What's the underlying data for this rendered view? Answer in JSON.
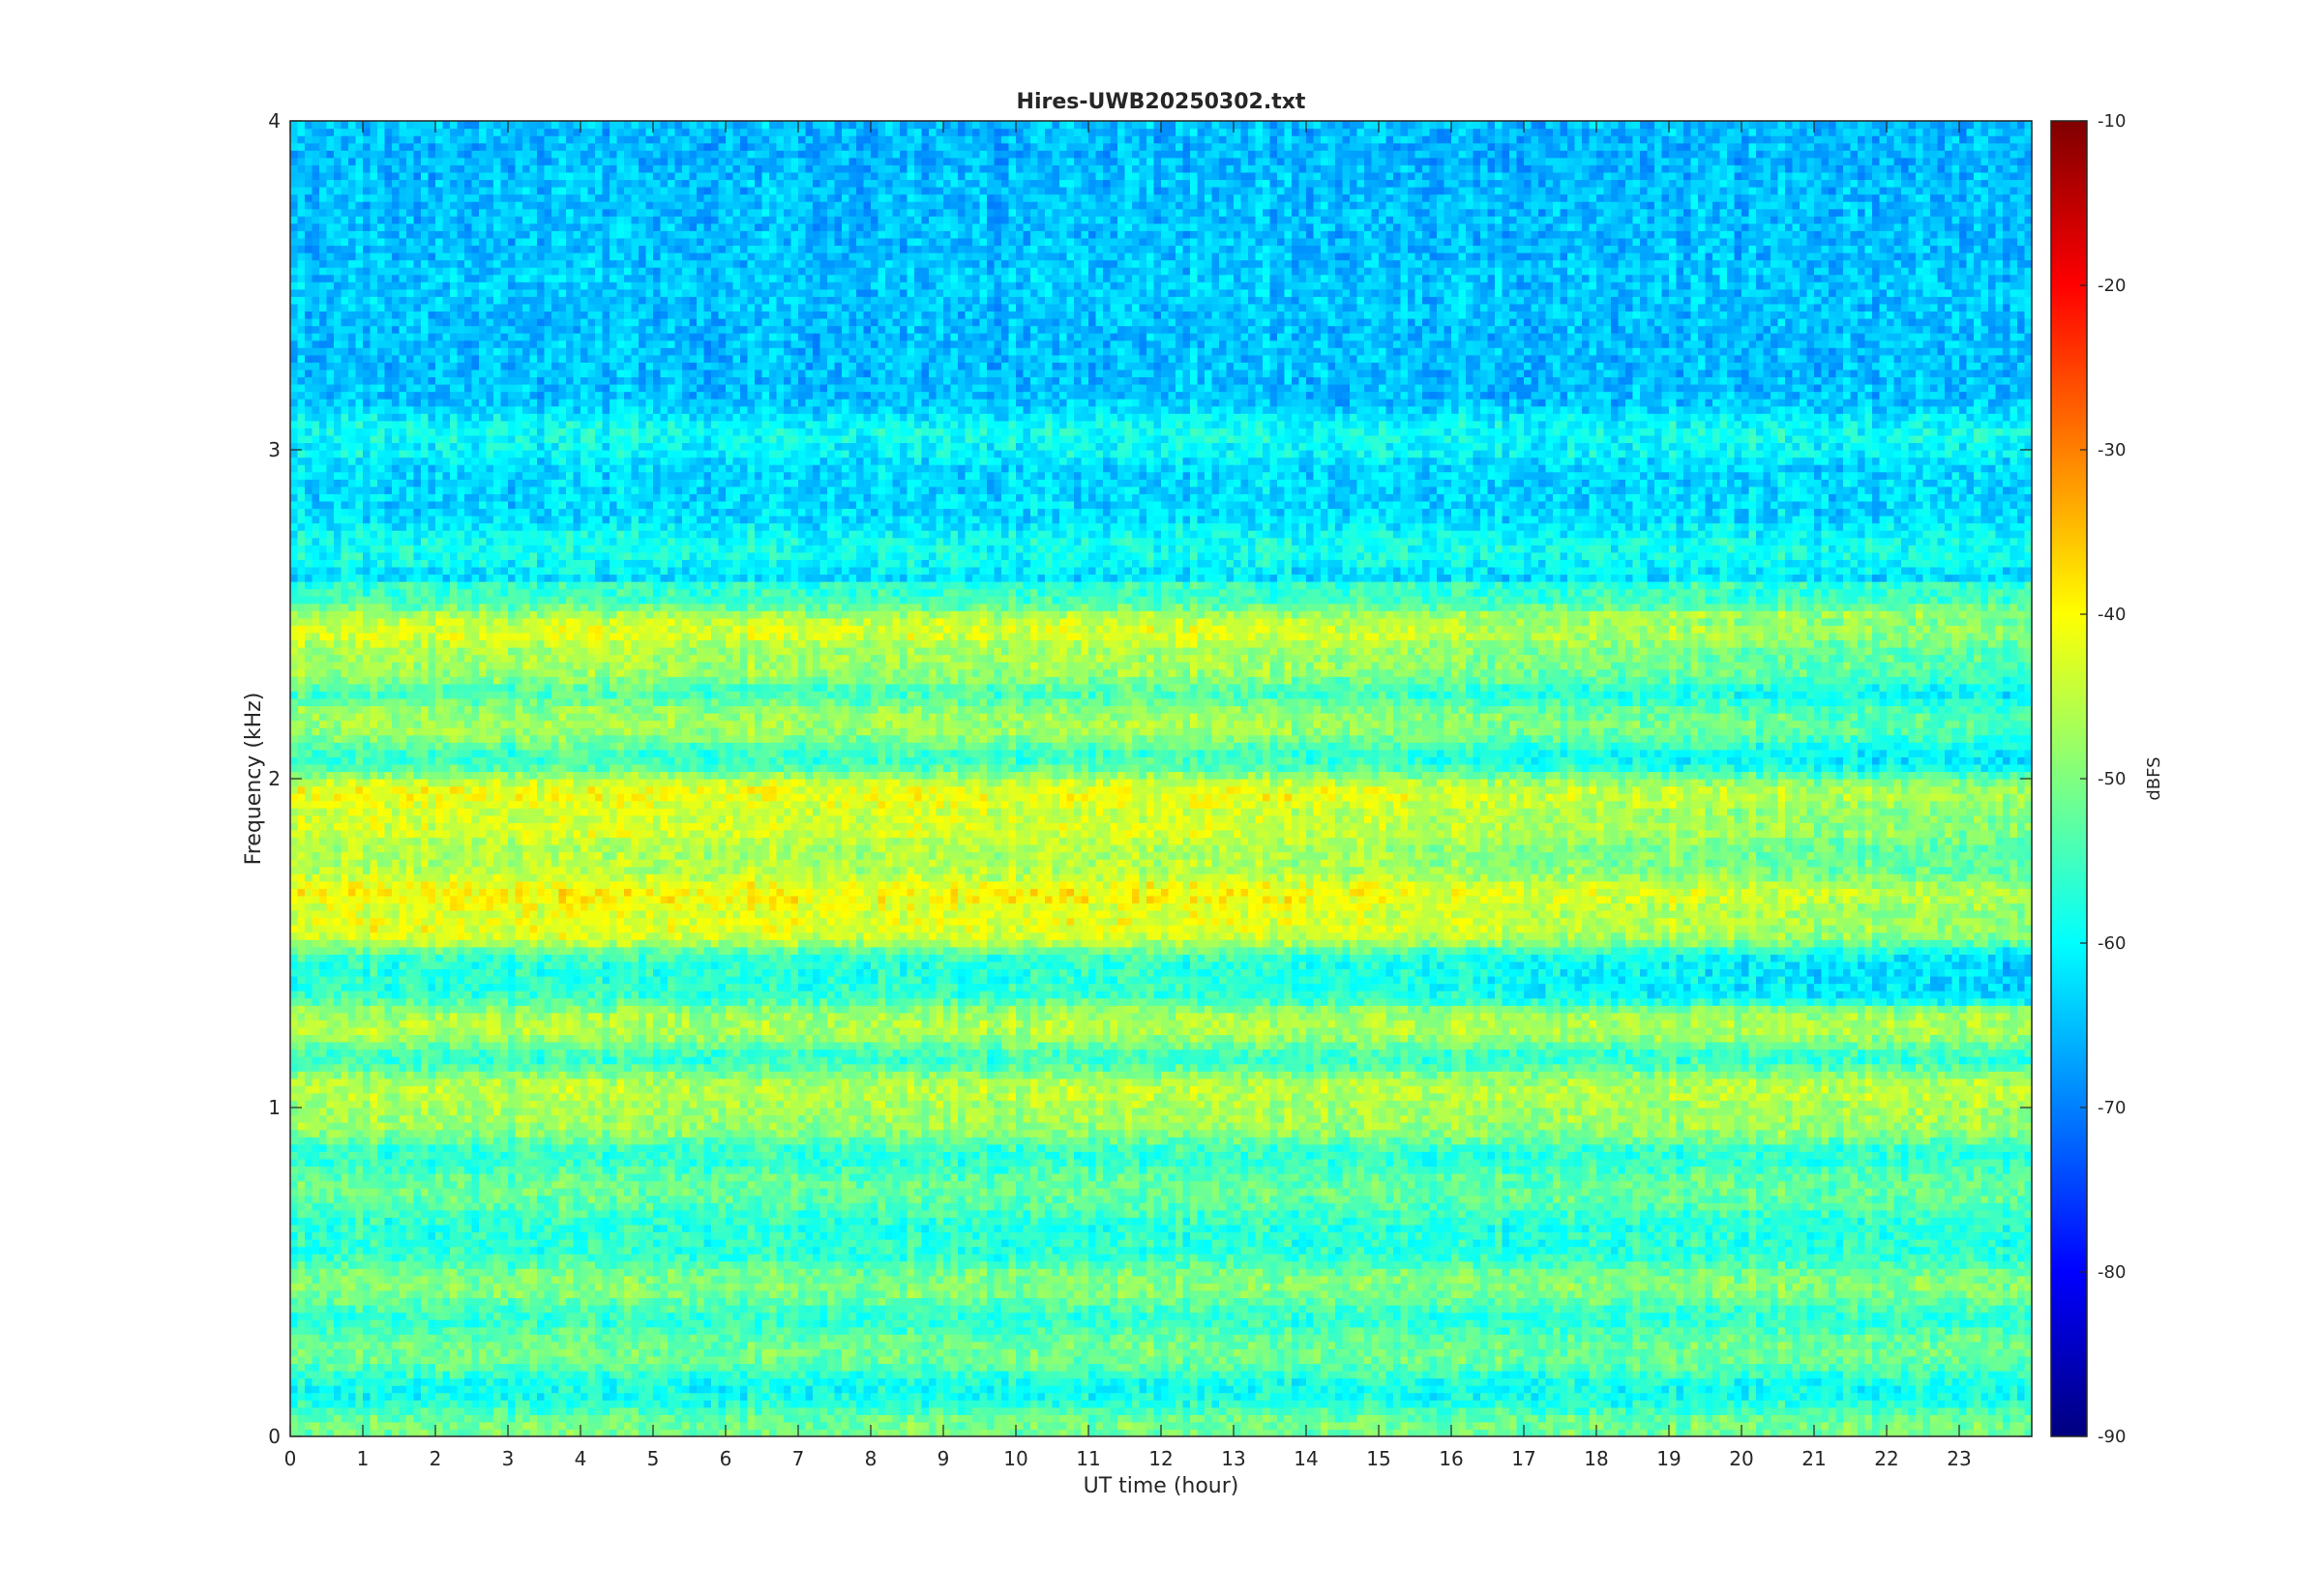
{
  "chart_data": {
    "type": "heatmap",
    "title": "Hires-UWB20250302.txt",
    "xlabel": "UT time (hour)",
    "ylabel": "Frequency (kHz)",
    "xlim": [
      0,
      24
    ],
    "ylim": [
      0,
      4
    ],
    "x_ticks": [
      "0",
      "1",
      "2",
      "3",
      "4",
      "5",
      "6",
      "7",
      "8",
      "9",
      "10",
      "11",
      "12",
      "13",
      "14",
      "15",
      "16",
      "17",
      "18",
      "19",
      "20",
      "21",
      "22",
      "23"
    ],
    "y_ticks": [
      "0",
      "1",
      "2",
      "3",
      "4"
    ],
    "colorbar": {
      "label": "dBFS",
      "range": [
        -90,
        -10
      ],
      "ticks": [
        "-90",
        "-80",
        "-70",
        "-60",
        "-50",
        "-40",
        "-30",
        "-20",
        "-10"
      ],
      "colormap": "jet"
    },
    "bands": [
      {
        "f": 0.04,
        "level": -48
      },
      {
        "f": 0.12,
        "level": -60
      },
      {
        "f": 0.26,
        "level": -49
      },
      {
        "f": 0.46,
        "level": -47
      },
      {
        "f": 0.75,
        "level": -50
      },
      {
        "f": 0.96,
        "level": -44
      },
      {
        "f": 1.05,
        "level": -41
      },
      {
        "f": 1.25,
        "level": -42
      },
      {
        "f": 1.55,
        "level": -36
      },
      {
        "f": 1.65,
        "level": -33
      },
      {
        "f": 1.75,
        "level": -42
      },
      {
        "f": 1.85,
        "level": -38
      },
      {
        "f": 1.95,
        "level": -35
      },
      {
        "f": 2.17,
        "level": -44
      },
      {
        "f": 2.35,
        "level": -44
      },
      {
        "f": 2.45,
        "level": -38
      },
      {
        "f": 2.7,
        "level": -57
      },
      {
        "f": 3.05,
        "level": -55
      },
      {
        "f": 3.5,
        "level": -62
      },
      {
        "f": 3.9,
        "level": -64
      }
    ]
  }
}
